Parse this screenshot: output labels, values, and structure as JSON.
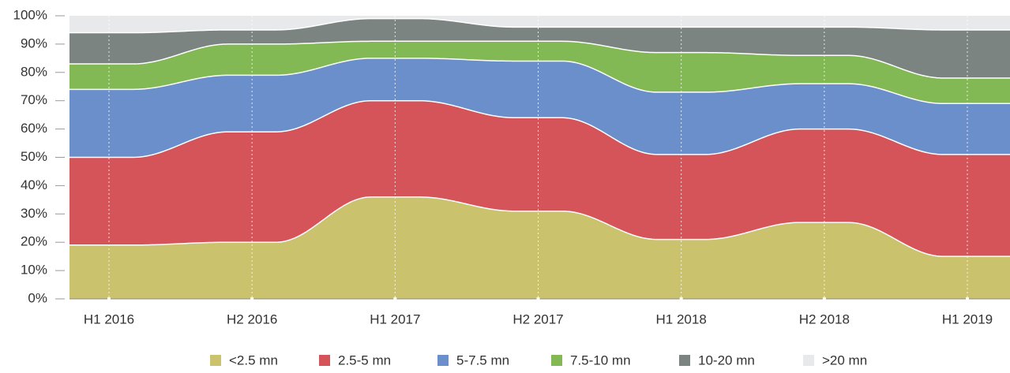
{
  "chart_data": {
    "type": "stacked_area",
    "categories": [
      "H1 2016",
      "H2 2016",
      "H1 2017",
      "H2 2017",
      "H1 2018",
      "H2 2018",
      "H1 2019"
    ],
    "series": [
      {
        "name": "<2.5 mn",
        "color": "#cbc26d",
        "values": [
          19,
          20,
          36,
          31,
          21,
          27,
          15
        ]
      },
      {
        "name": "2.5-5 mn",
        "color": "#d5545a",
        "values": [
          31,
          39,
          34,
          33,
          30,
          33,
          36
        ]
      },
      {
        "name": "5-7.5 mn",
        "color": "#6b8fca",
        "values": [
          24,
          20,
          15,
          20,
          22,
          16,
          18
        ]
      },
      {
        "name": "7.5-10 mn",
        "color": "#82b955",
        "values": [
          9,
          11,
          6,
          7,
          14,
          10,
          9
        ]
      },
      {
        "name": "10-20 mn",
        "color": "#7b8480",
        "values": [
          11,
          5,
          8,
          5,
          9,
          10,
          17
        ]
      },
      {
        "name": ">20 mn",
        "color": "#e8e9eb",
        "values": [
          6,
          5,
          1,
          4,
          4,
          4,
          5
        ]
      }
    ],
    "ylim": [
      0,
      100
    ],
    "yticks": [
      {
        "value": 0,
        "label": "0%"
      },
      {
        "value": 10,
        "label": "10%"
      },
      {
        "value": 20,
        "label": "20%"
      },
      {
        "value": 30,
        "label": "30%"
      },
      {
        "value": 40,
        "label": "40%"
      },
      {
        "value": 50,
        "label": "50%"
      },
      {
        "value": 60,
        "label": "60%"
      },
      {
        "value": 70,
        "label": "70%"
      },
      {
        "value": 80,
        "label": "80%"
      },
      {
        "value": 90,
        "label": "90%"
      },
      {
        "value": 100,
        "label": "100%"
      }
    ],
    "grid": true,
    "legend": "bottom"
  }
}
